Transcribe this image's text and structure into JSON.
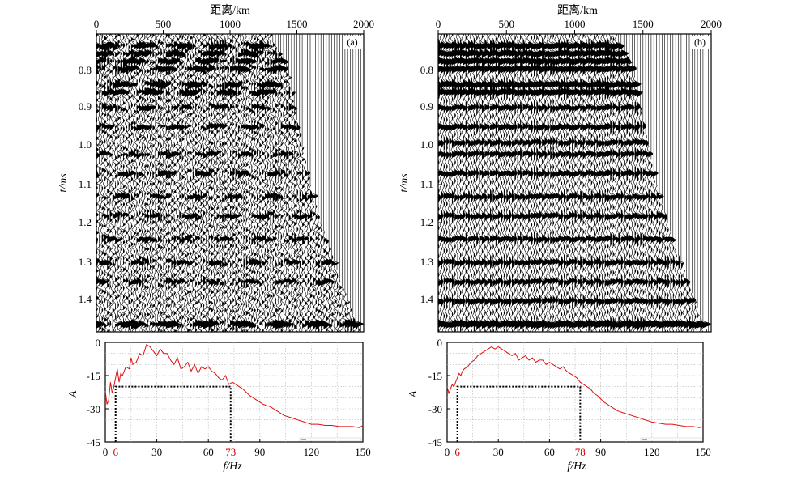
{
  "figure": {
    "panels": [
      {
        "label": "(a)",
        "seismic": {
          "x_axis_label": "距离/km",
          "y_axis_label": "t/ms",
          "x_ticks": [
            "0",
            "500",
            "1000",
            "1500",
            "2000"
          ],
          "y_ticks": [
            "0.8",
            "0.9",
            "1.0",
            "1.1",
            "1.2",
            "1.3",
            "1.4"
          ]
        },
        "spectrum": {
          "x_axis_label": "f/Hz",
          "y_axis_label": "A",
          "x_ticks": [
            "0",
            "30",
            "60",
            "90",
            "120",
            "150"
          ],
          "y_ticks": [
            "0",
            "-15",
            "-30",
            "-45"
          ],
          "marker_low": "6",
          "marker_high": "73"
        }
      },
      {
        "label": "(b)",
        "seismic": {
          "x_axis_label": "距离/km",
          "y_axis_label": "t/ms",
          "x_ticks": [
            "0",
            "500",
            "1000",
            "1500",
            "2000"
          ],
          "y_ticks": [
            "0.8",
            "0.9",
            "1.0",
            "1.1",
            "1.2",
            "1.3",
            "1.4"
          ]
        },
        "spectrum": {
          "x_axis_label": "f/Hz",
          "y_axis_label": "A",
          "x_ticks": [
            "0",
            "30",
            "60",
            "90",
            "120",
            "150"
          ],
          "y_ticks": [
            "0",
            "-15",
            "-30",
            "-45"
          ],
          "marker_low": "6",
          "marker_high": "78"
        }
      }
    ]
  },
  "chart_data": [
    {
      "type": "wiggle",
      "panel": "(a)",
      "x_range_km": [
        0,
        2000
      ],
      "t_range_ms": [
        0.71,
        1.48
      ],
      "trace_spacing_km": 20,
      "trace_end_km": [
        {
          "t": 0.72,
          "x": 1300
        },
        {
          "t": 0.8,
          "x": 1430
        },
        {
          "t": 0.9,
          "x": 1480
        },
        {
          "t": 1.0,
          "x": 1540
        },
        {
          "t": 1.1,
          "x": 1600
        },
        {
          "t": 1.2,
          "x": 1680
        },
        {
          "t": 1.3,
          "x": 1780
        },
        {
          "t": 1.4,
          "x": 1880
        },
        {
          "t": 1.47,
          "x": 1960
        }
      ],
      "reflector_times_ms": [
        0.74,
        0.76,
        0.78,
        0.8,
        0.84,
        0.86,
        0.9,
        0.95,
        1.02,
        1.07,
        1.13,
        1.18,
        1.24,
        1.3,
        1.35,
        1.46
      ],
      "noise": "high"
    },
    {
      "type": "wiggle",
      "panel": "(b)",
      "x_range_km": [
        0,
        2000
      ],
      "t_range_ms": [
        0.71,
        1.48
      ],
      "trace_spacing_km": 20,
      "trace_end_km": [
        {
          "t": 0.72,
          "x": 1300
        },
        {
          "t": 0.8,
          "x": 1430
        },
        {
          "t": 0.9,
          "x": 1480
        },
        {
          "t": 1.0,
          "x": 1540
        },
        {
          "t": 1.1,
          "x": 1600
        },
        {
          "t": 1.2,
          "x": 1680
        },
        {
          "t": 1.3,
          "x": 1780
        },
        {
          "t": 1.4,
          "x": 1880
        },
        {
          "t": 1.47,
          "x": 1960
        }
      ],
      "reflector_times_ms": [
        0.74,
        0.76,
        0.78,
        0.8,
        0.84,
        0.86,
        0.9,
        0.95,
        0.99,
        1.02,
        1.07,
        1.13,
        1.18,
        1.24,
        1.3,
        1.35,
        1.4,
        1.46
      ],
      "noise": "low"
    },
    {
      "type": "line",
      "panel": "(a)",
      "xlabel": "f/Hz",
      "ylabel": "A",
      "xlim": [
        0,
        150
      ],
      "ylim": [
        -45,
        0
      ],
      "grid": true,
      "series": [
        {
          "color": "#e01010",
          "x": [
            0,
            1,
            2,
            3,
            4,
            5,
            6,
            7,
            8,
            9,
            10,
            12,
            14,
            15,
            16,
            18,
            20,
            22,
            24,
            26,
            28,
            30,
            32,
            34,
            36,
            38,
            40,
            42,
            44,
            46,
            48,
            50,
            52,
            54,
            56,
            58,
            60,
            62,
            64,
            66,
            68,
            70,
            72,
            74,
            76,
            78,
            80,
            84,
            88,
            92,
            96,
            100,
            104,
            108,
            112,
            116,
            120,
            124,
            128,
            132,
            136,
            140,
            144,
            148,
            150
          ],
          "y": [
            -22,
            -28,
            -26,
            -18,
            -23,
            -20,
            -16,
            -12,
            -18,
            -14,
            -15,
            -11,
            -12,
            -7,
            -10,
            -9,
            -5,
            -6,
            -1,
            -2,
            -4,
            -6,
            -3,
            -5,
            -5,
            -8,
            -10,
            -7,
            -12,
            -11,
            -9,
            -13,
            -10,
            -14,
            -11,
            -12,
            -11,
            -13,
            -14,
            -16,
            -17,
            -15,
            -19,
            -18,
            -19,
            -20,
            -21,
            -24,
            -26,
            -28,
            -29,
            -31,
            -33,
            -34,
            -35,
            -36,
            -37,
            -37,
            -37.5,
            -37.5,
            -38,
            -38,
            -38,
            -38.5,
            -37.5
          ]
        }
      ],
      "markers": [
        {
          "f": 6,
          "a": -20
        },
        {
          "f": 73,
          "a": -20
        }
      ]
    },
    {
      "type": "line",
      "panel": "(b)",
      "xlabel": "f/Hz",
      "ylabel": "A",
      "xlim": [
        0,
        150
      ],
      "ylim": [
        -45,
        0
      ],
      "grid": true,
      "series": [
        {
          "color": "#e01010",
          "x": [
            0,
            1,
            2,
            3,
            4,
            5,
            6,
            7,
            8,
            9,
            10,
            12,
            14,
            16,
            18,
            20,
            22,
            24,
            26,
            28,
            30,
            32,
            34,
            36,
            38,
            40,
            42,
            44,
            46,
            48,
            50,
            52,
            54,
            56,
            58,
            60,
            62,
            64,
            66,
            68,
            70,
            72,
            74,
            76,
            78,
            80,
            82,
            84,
            86,
            88,
            92,
            96,
            100,
            104,
            108,
            112,
            116,
            120,
            124,
            128,
            132,
            136,
            140,
            144,
            148,
            150
          ],
          "y": [
            -20,
            -23,
            -21,
            -19,
            -20,
            -18,
            -16,
            -14,
            -15,
            -13,
            -12,
            -11,
            -9,
            -8,
            -6,
            -5,
            -4,
            -3,
            -2,
            -3,
            -2,
            -3,
            -4,
            -5,
            -6,
            -5,
            -8,
            -7,
            -6,
            -8,
            -7,
            -9,
            -8,
            -8,
            -10,
            -9,
            -10,
            -11,
            -12,
            -11,
            -13,
            -14,
            -15,
            -16,
            -18,
            -19,
            -20,
            -21,
            -23,
            -24,
            -27,
            -29,
            -31,
            -32,
            -33,
            -34,
            -35,
            -36,
            -36.5,
            -37,
            -37,
            -37.5,
            -38,
            -38,
            -38.5,
            -38
          ]
        }
      ],
      "markers": [
        {
          "f": 6,
          "a": -20
        },
        {
          "f": 78,
          "a": -20
        }
      ]
    }
  ]
}
